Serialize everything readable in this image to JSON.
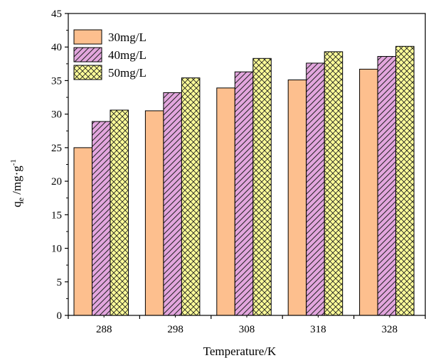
{
  "chart_data": {
    "type": "bar",
    "title": "",
    "xlabel": "Temperature/K",
    "ylabel": {
      "q": "q",
      "sub": "e",
      "unit": " /mg·g",
      "sup": "-1"
    },
    "categories": [
      "288",
      "298",
      "308",
      "318",
      "328"
    ],
    "ylim": [
      0,
      45
    ],
    "yticks": [
      "0",
      "5",
      "10",
      "15",
      "20",
      "25",
      "30",
      "35",
      "40",
      "45"
    ],
    "legend_position": "top-left",
    "grid": false,
    "series": [
      {
        "name": "30mg/L",
        "values": [
          25.0,
          30.5,
          33.9,
          35.1,
          36.7
        ],
        "color": "#FDBF8E",
        "pattern": "solid"
      },
      {
        "name": "40mg/L",
        "values": [
          28.9,
          33.2,
          36.3,
          37.6,
          38.6
        ],
        "color": "#E3A6DE",
        "pattern": "diagonal"
      },
      {
        "name": "50mg/L",
        "values": [
          30.6,
          35.4,
          38.3,
          39.3,
          40.1
        ],
        "color": "#FFFF99",
        "pattern": "crosshatch"
      }
    ]
  }
}
